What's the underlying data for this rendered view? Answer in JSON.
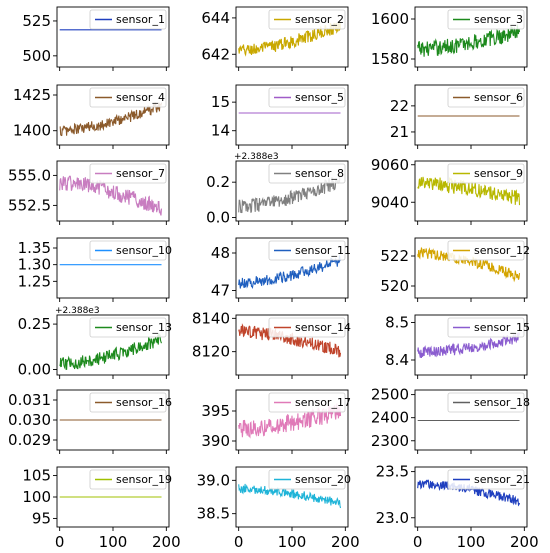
{
  "chart_data": [
    {
      "type": "line",
      "name": "sensor_1",
      "color": "#1f3fbf",
      "ylim": [
        492,
        535
      ],
      "yticks": [
        "525",
        "500"
      ],
      "ytick_values": [
        525,
        500
      ],
      "series": [
        {
          "name": "sensor_1",
          "values": [
            518.67
          ],
          "constant": true
        }
      ]
    },
    {
      "type": "line",
      "name": "sensor_2",
      "color": "#c9a800",
      "ylim": [
        641.3,
        644.6
      ],
      "yticks": [
        "644",
        "642"
      ],
      "ytick_values": [
        644,
        642
      ],
      "series": [
        {
          "name": "sensor_2",
          "start": 642.2,
          "end": 643.6,
          "noise": 0.35
        }
      ]
    },
    {
      "type": "line",
      "name": "sensor_3",
      "color": "#1d8a1d",
      "ylim": [
        1576,
        1606
      ],
      "yticks": [
        "1600",
        "1580"
      ],
      "ytick_values": [
        1600,
        1580
      ],
      "series": [
        {
          "name": "sensor_3",
          "start": 1585,
          "end": 1594,
          "noise": 4
        }
      ]
    },
    {
      "type": "line",
      "name": "sensor_4",
      "color": "#8b5a2b",
      "ylim": [
        1390,
        1432
      ],
      "yticks": [
        "1425",
        "1400"
      ],
      "ytick_values": [
        1425,
        1400
      ],
      "series": [
        {
          "name": "sensor_4",
          "start": 1400,
          "end": 1418,
          "noise": 4
        }
      ]
    },
    {
      "type": "line",
      "name": "sensor_5",
      "color": "#a05cc8",
      "ylim": [
        13.5,
        15.6
      ],
      "yticks": [
        "15",
        "14"
      ],
      "ytick_values": [
        15,
        14
      ],
      "series": [
        {
          "name": "sensor_5",
          "values": [
            14.62
          ],
          "constant": true
        }
      ]
    },
    {
      "type": "line",
      "name": "sensor_6",
      "color": "#8b5a2b",
      "ylim": [
        20.5,
        22.8
      ],
      "yticks": [
        "22",
        "21"
      ],
      "ytick_values": [
        22,
        21
      ],
      "series": [
        {
          "name": "sensor_6",
          "values": [
            21.61
          ],
          "constant": true
        }
      ]
    },
    {
      "type": "line",
      "name": "sensor_7",
      "color": "#c87dc0",
      "ylim": [
        551.2,
        556.2
      ],
      "yticks": [
        "555.0",
        "552.5"
      ],
      "ytick_values": [
        555.0,
        552.5
      ],
      "series": [
        {
          "name": "sensor_7",
          "start": 554.4,
          "end": 552.2,
          "noise": 0.7
        }
      ]
    },
    {
      "type": "line",
      "name": "sensor_8",
      "color": "#808080",
      "offset_label": "+2.388e3",
      "ylim": [
        -0.02,
        0.32
      ],
      "yticks": [
        "0.2",
        "0.0"
      ],
      "ytick_values": [
        0.2,
        0.0
      ],
      "series": [
        {
          "name": "sensor_8",
          "start": 0.06,
          "end": 0.21,
          "noise": 0.04
        }
      ]
    },
    {
      "type": "line",
      "name": "sensor_9",
      "color": "#b8b800",
      "ylim": [
        9030,
        9062
      ],
      "yticks": [
        "9060",
        "9040"
      ],
      "ytick_values": [
        9060,
        9040
      ],
      "series": [
        {
          "name": "sensor_9",
          "start": 9050,
          "end": 9042,
          "noise": 4
        }
      ]
    },
    {
      "type": "line",
      "name": "sensor_10",
      "color": "#1e90ff",
      "ylim": [
        1.2,
        1.38
      ],
      "yticks": [
        "1.35",
        "1.30",
        "1.25"
      ],
      "ytick_values": [
        1.35,
        1.3,
        1.25
      ],
      "series": [
        {
          "name": "sensor_10",
          "values": [
            1.3
          ],
          "constant": true
        }
      ]
    },
    {
      "type": "line",
      "name": "sensor_11",
      "color": "#1f5fbf",
      "ylim": [
        46.8,
        48.4
      ],
      "yticks": [
        "48",
        "47"
      ],
      "ytick_values": [
        48,
        47
      ],
      "series": [
        {
          "name": "sensor_11",
          "start": 47.2,
          "end": 47.8,
          "noise": 0.15
        }
      ]
    },
    {
      "type": "line",
      "name": "sensor_12",
      "color": "#d4a400",
      "ylim": [
        519.2,
        523.2
      ],
      "yticks": [
        "522",
        "520"
      ],
      "ytick_values": [
        522,
        520
      ],
      "series": [
        {
          "name": "sensor_12",
          "start": 522.2,
          "end": 520.6,
          "noise": 0.35
        }
      ]
    },
    {
      "type": "line",
      "name": "sensor_13",
      "color": "#1d8a1d",
      "offset_label": "+2.388e3",
      "ylim": [
        -0.03,
        0.3
      ],
      "yticks": [
        "0.25",
        "0.00"
      ],
      "ytick_values": [
        0.25,
        0.0
      ],
      "series": [
        {
          "name": "sensor_13",
          "start": 0.03,
          "end": 0.17,
          "noise": 0.035
        }
      ]
    },
    {
      "type": "line",
      "name": "sensor_14",
      "color": "#c0442b",
      "ylim": [
        8106,
        8142
      ],
      "yticks": [
        "8140",
        "8120"
      ],
      "ytick_values": [
        8140,
        8120
      ],
      "series": [
        {
          "name": "sensor_14",
          "start": 8132,
          "end": 8120,
          "noise": 4
        }
      ]
    },
    {
      "type": "line",
      "name": "sensor_15",
      "color": "#8a5ccf",
      "ylim": [
        8.36,
        8.52
      ],
      "yticks": [
        "8.5",
        "8.4"
      ],
      "ytick_values": [
        8.5,
        8.4
      ],
      "series": [
        {
          "name": "sensor_15",
          "start": 8.42,
          "end": 8.46,
          "noise": 0.015
        }
      ]
    },
    {
      "type": "line",
      "name": "sensor_16",
      "color": "#8b5a2b",
      "ylim": [
        0.0285,
        0.0315
      ],
      "yticks": [
        "0.031",
        "0.030",
        "0.029"
      ],
      "ytick_values": [
        0.031,
        0.03,
        0.029
      ],
      "series": [
        {
          "name": "sensor_16",
          "values": [
            0.03
          ],
          "constant": true
        }
      ]
    },
    {
      "type": "line",
      "name": "sensor_17",
      "color": "#e07ab8",
      "ylim": [
        388.5,
        398.5
      ],
      "yticks": [
        "395",
        "390"
      ],
      "ytick_values": [
        395,
        390
      ],
      "series": [
        {
          "name": "sensor_17",
          "start": 392,
          "end": 395,
          "noise": 1.5
        }
      ]
    },
    {
      "type": "line",
      "name": "sensor_18",
      "color": "#606060",
      "ylim": [
        2260,
        2520
      ],
      "yticks": [
        "2500",
        "2400",
        "2300"
      ],
      "ytick_values": [
        2500,
        2400,
        2300
      ],
      "series": [
        {
          "name": "sensor_18",
          "values": [
            2388
          ],
          "constant": true
        }
      ]
    },
    {
      "type": "line",
      "name": "sensor_19",
      "color": "#a0c000",
      "ylim": [
        93,
        107
      ],
      "yticks": [
        "105",
        "100",
        "95"
      ],
      "ytick_values": [
        105,
        100,
        95
      ],
      "series": [
        {
          "name": "sensor_19",
          "values": [
            100
          ],
          "constant": true
        }
      ]
    },
    {
      "type": "line",
      "name": "sensor_20",
      "color": "#1fb4d8",
      "ylim": [
        38.3,
        39.2
      ],
      "yticks": [
        "39.0",
        "38.5"
      ],
      "ytick_values": [
        39.0,
        38.5
      ],
      "series": [
        {
          "name": "sensor_20",
          "start": 38.88,
          "end": 38.65,
          "noise": 0.07
        }
      ]
    },
    {
      "type": "line",
      "name": "sensor_21",
      "color": "#1f3fbf",
      "ylim": [
        22.9,
        23.55
      ],
      "yticks": [
        "23.5",
        "23.0"
      ],
      "ytick_values": [
        23.5,
        23.0
      ],
      "series": [
        {
          "name": "sensor_21",
          "start": 23.37,
          "end": 23.18,
          "noise": 0.05
        }
      ]
    }
  ],
  "shared_x": {
    "range": [
      -5,
      205
    ],
    "points": 192,
    "xticks": [
      "0",
      "100",
      "200"
    ],
    "xtick_values": [
      0,
      100,
      200
    ]
  }
}
